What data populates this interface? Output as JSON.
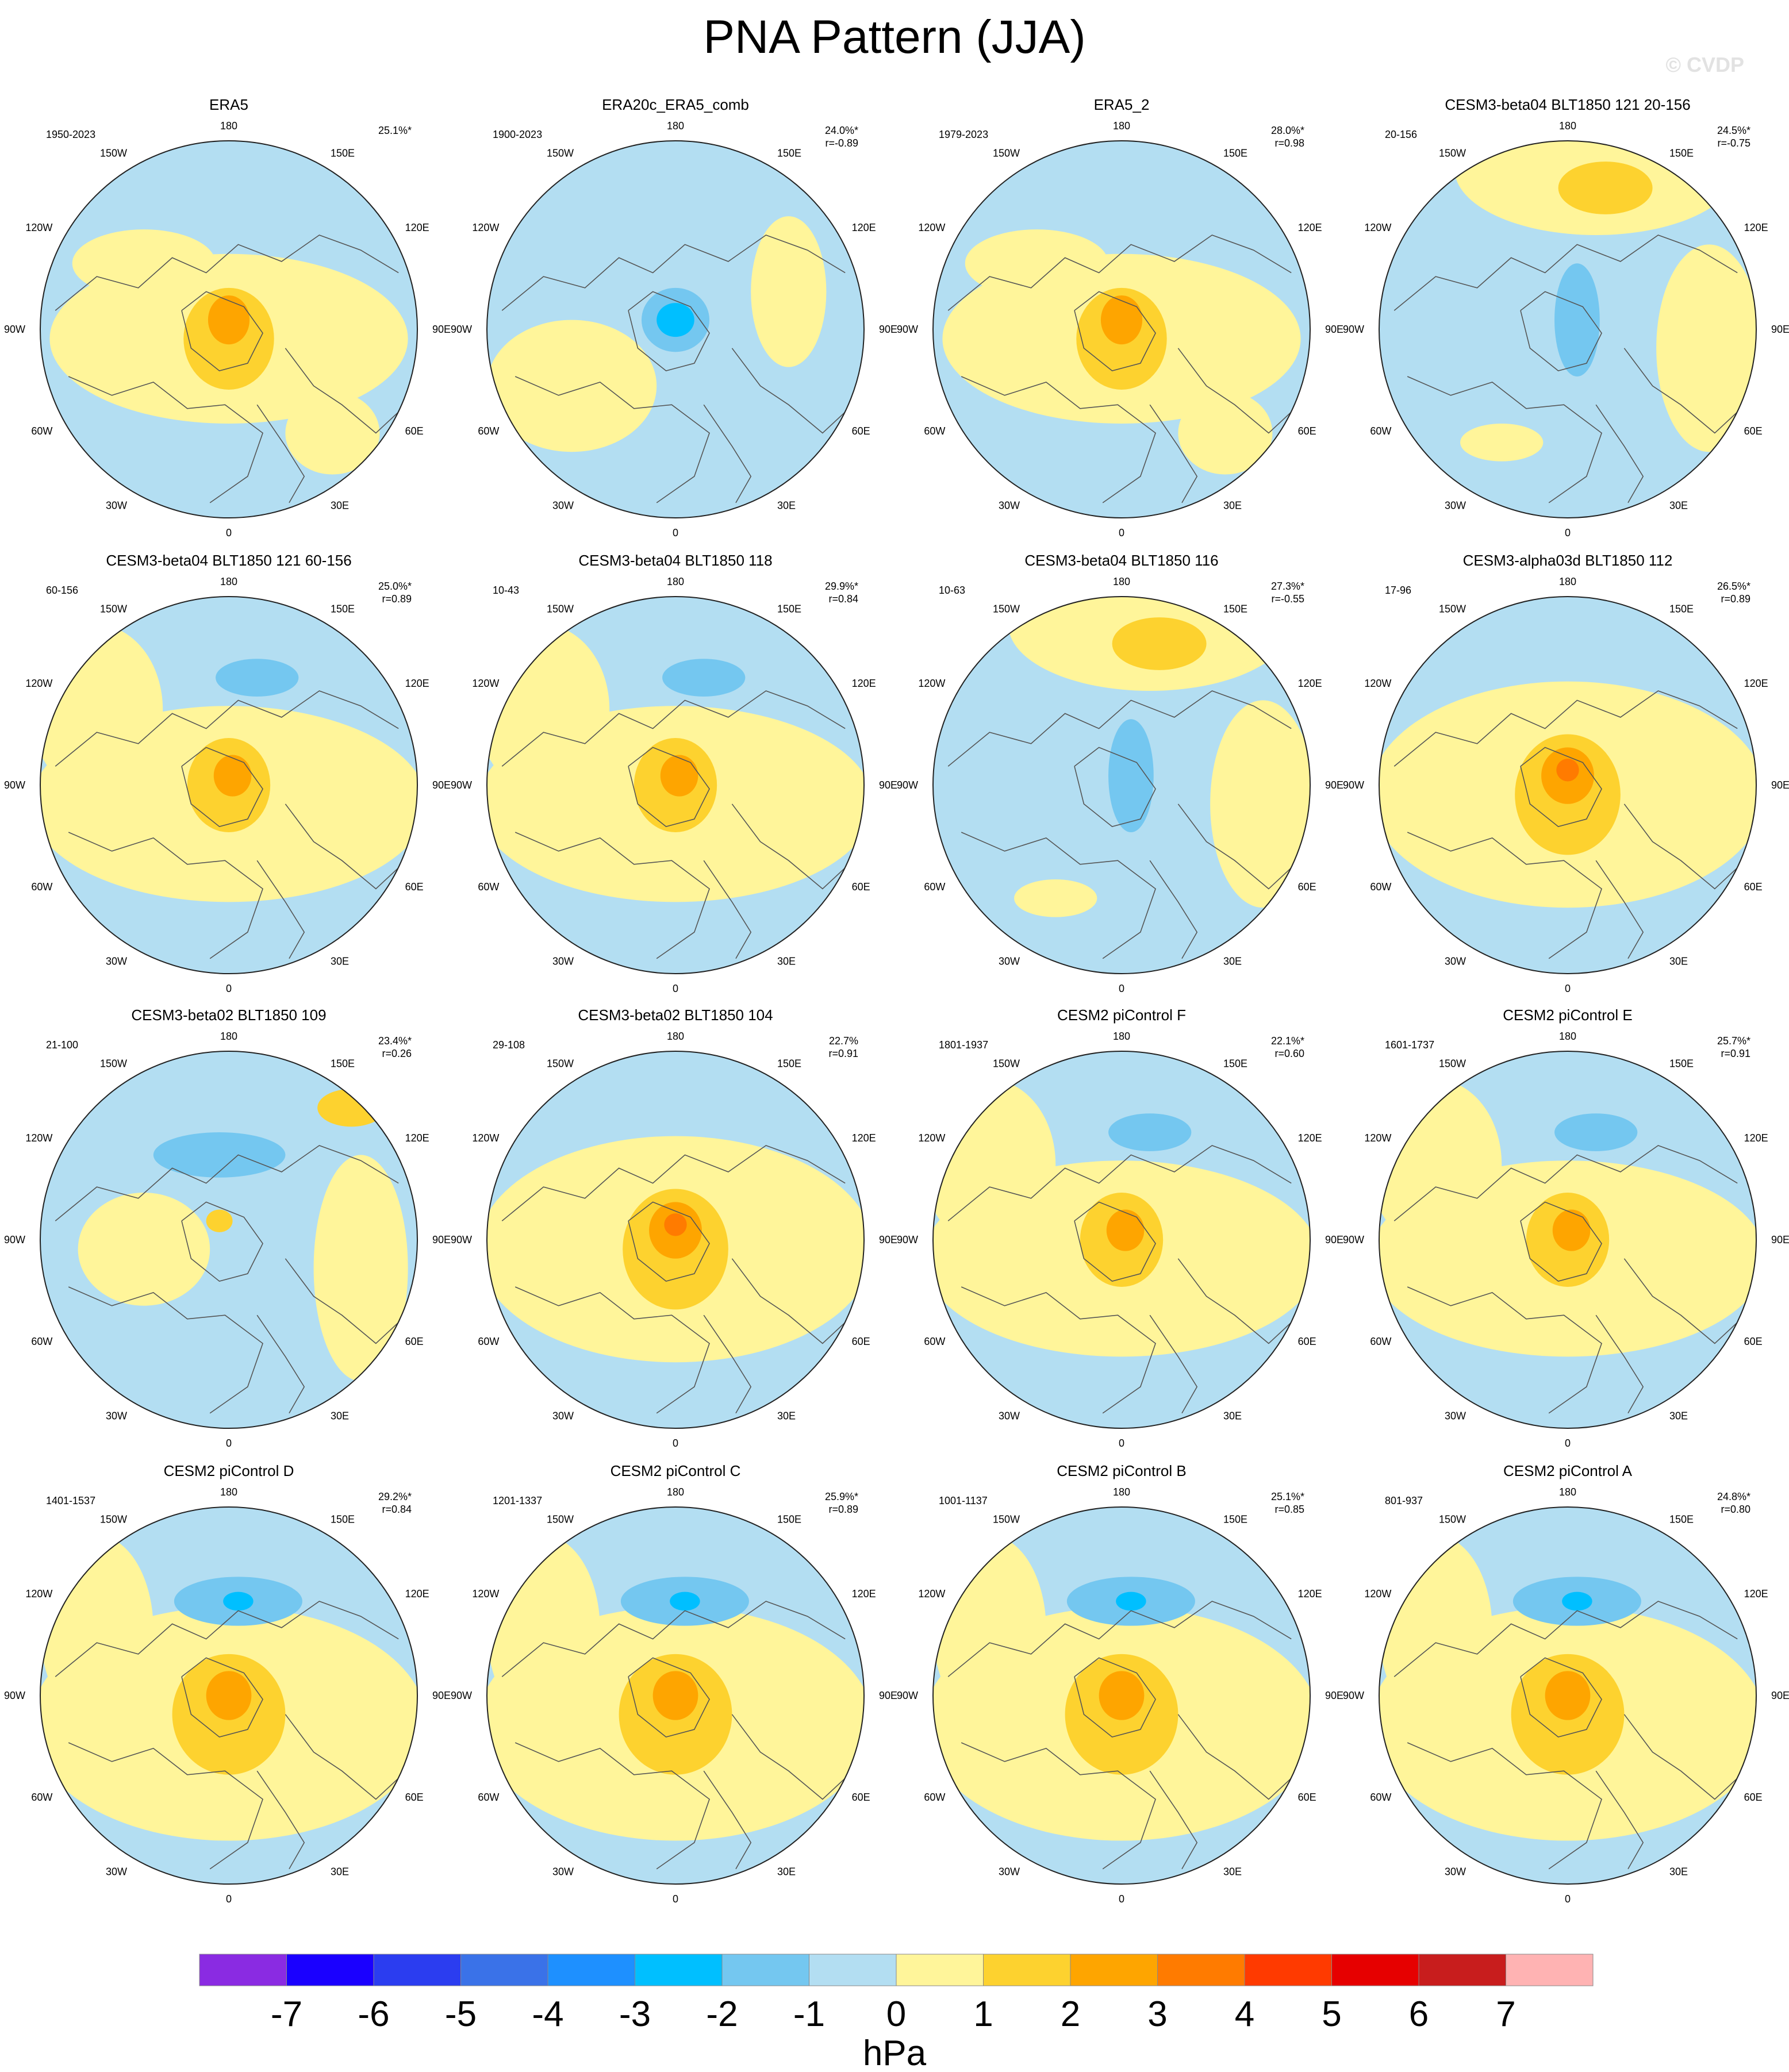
{
  "title": "PNA Pattern (JJA)",
  "watermark": "© CVDP",
  "lon_labels": {
    "top": "180",
    "bottom": "0",
    "ul1": "150W",
    "ul2": "120W",
    "left": "90W",
    "ll2": "60W",
    "ll1": "30W",
    "ur1": "150E",
    "ur2": "120E",
    "right": "90E",
    "lr2": "60E",
    "lr1": "30E"
  },
  "panels": [
    {
      "name": "ERA5",
      "years": "1950-2023",
      "pct": "25.1%*",
      "r": "",
      "pattern": "posA"
    },
    {
      "name": "ERA20c_ERA5_comb",
      "years": "1900-2023",
      "pct": "24.0%*",
      "r": "r=-0.89",
      "pattern": "negPole"
    },
    {
      "name": "ERA5_2",
      "years": "1979-2023",
      "pct": "28.0%*",
      "r": "r=0.98",
      "pattern": "posA"
    },
    {
      "name": "CESM3-beta04 BLT1850 121 20-156",
      "years": "20-156",
      "pct": "24.5%*",
      "r": "r=-0.75",
      "pattern": "negB"
    },
    {
      "name": "CESM3-beta04 BLT1850 121 60-156",
      "years": "60-156",
      "pct": "25.0%*",
      "r": "r=0.89",
      "pattern": "posB"
    },
    {
      "name": "CESM3-beta04 BLT1850 118",
      "years": "10-43",
      "pct": "29.9%*",
      "r": "r=0.84",
      "pattern": "posB"
    },
    {
      "name": "CESM3-beta04 BLT1850 116",
      "years": "10-63",
      "pct": "27.3%*",
      "r": "r=-0.55",
      "pattern": "negB"
    },
    {
      "name": "CESM3-alpha03d BLT1850 112",
      "years": "17-96",
      "pct": "26.5%*",
      "r": "r=0.89",
      "pattern": "posC"
    },
    {
      "name": "CESM3-beta02 BLT1850 109",
      "years": "21-100",
      "pct": "23.4%*",
      "r": "r=0.26",
      "pattern": "weak"
    },
    {
      "name": "CESM3-beta02 BLT1850 104",
      "years": "29-108",
      "pct": "22.7%",
      "r": "r=0.91",
      "pattern": "posC"
    },
    {
      "name": "CESM2 piControl F",
      "years": "1801-1937",
      "pct": "22.1%*",
      "r": "r=0.60",
      "pattern": "posB"
    },
    {
      "name": "CESM2 piControl E",
      "years": "1601-1737",
      "pct": "25.7%*",
      "r": "r=0.91",
      "pattern": "posB"
    },
    {
      "name": "CESM2 piControl D",
      "years": "1401-1537",
      "pct": "29.2%*",
      "r": "r=0.84",
      "pattern": "posD"
    },
    {
      "name": "CESM2 piControl C",
      "years": "1201-1337",
      "pct": "25.9%*",
      "r": "r=0.89",
      "pattern": "posD"
    },
    {
      "name": "CESM2 piControl B",
      "years": "1001-1137",
      "pct": "25.1%*",
      "r": "r=0.85",
      "pattern": "posD"
    },
    {
      "name": "CESM2 piControl A",
      "years": "801-937",
      "pct": "24.8%*",
      "r": "r=0.80",
      "pattern": "posD"
    }
  ],
  "colorbar": {
    "unit": "hPa",
    "labels": [
      "-7",
      "-6",
      "-5",
      "-4",
      "-3",
      "-2",
      "-1",
      "0",
      "1",
      "2",
      "3",
      "4",
      "5",
      "6",
      "7"
    ],
    "colors": [
      "#8a2be2",
      "#1a00ff",
      "#2b3df0",
      "#3a72e8",
      "#1e90ff",
      "#00bfff",
      "#74c7f0",
      "#b3def2",
      "#fff59a",
      "#fdd22f",
      "#fea500",
      "#ff7b00",
      "#ff3a00",
      "#e60000",
      "#c81d1d",
      "#ffb3b3"
    ]
  }
}
